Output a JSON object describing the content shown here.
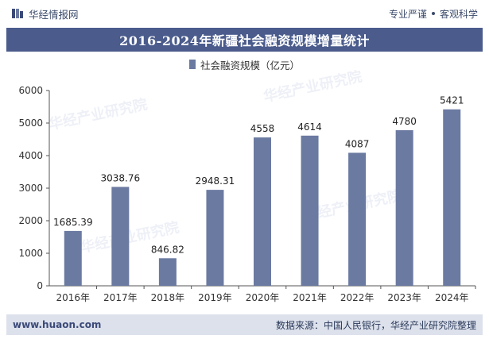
{
  "header": {
    "brand": "华经情报网",
    "slogan_left": "专业严谨",
    "slogan_right": "客观科学"
  },
  "title": "2016-2024年新疆社会融资规模增量统计",
  "colors": {
    "bar": "#6b7aa1",
    "title_bg": "#4a5b8c",
    "footer_bg": "#dde1ec"
  },
  "chart_data": {
    "type": "bar",
    "categories": [
      "2016年",
      "2017年",
      "2018年",
      "2019年",
      "2020年",
      "2021年",
      "2022年",
      "2023年",
      "2024年"
    ],
    "series": [
      {
        "name": "社会融资规模（亿元）",
        "values": [
          1685.39,
          3038.76,
          846.82,
          2948.31,
          4558,
          4614,
          4087,
          4780,
          5421
        ],
        "labels": [
          "1685.39",
          "3038.76",
          "846.82",
          "2948.31",
          "4558",
          "4614",
          "4087",
          "4780",
          "5421"
        ]
      }
    ],
    "ylim": [
      0,
      6000
    ],
    "yticks": [
      "0",
      "1000",
      "2000",
      "3000",
      "4000",
      "5000",
      "6000"
    ],
    "legend_position": "top-center",
    "grid": false
  },
  "footer": {
    "site": "www.huaon.com",
    "source": "数据来源：中国人民银行，华经产业研究院整理"
  }
}
